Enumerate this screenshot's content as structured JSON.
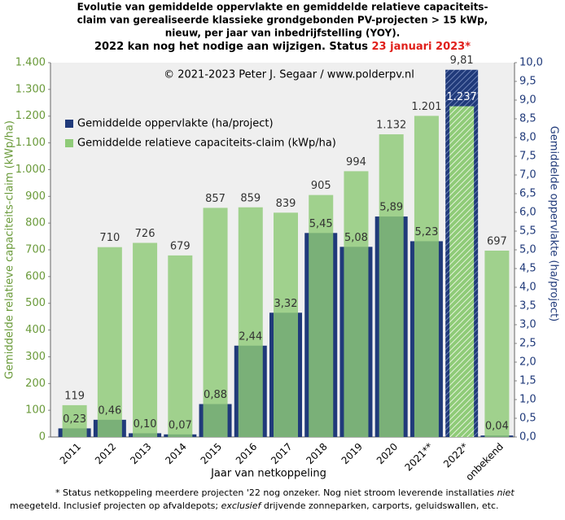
{
  "chart_data": {
    "type": "bar",
    "title_lines": [
      "Evolutie van gemiddelde oppervlakte en gemiddelde relatieve capaciteits-",
      "claim van gerealiseerde klassieke grondgebonden PV-projecten > 15 kWp,",
      "nieuw, per jaar van inbedrijfstelling  (YOY)."
    ],
    "subtitle": "2022 kan nog het nodige aan wijzigen. Status ",
    "subtitle_highlight": "23 januari 2023*",
    "annotation": "© 2021-2023  Peter J. Segaar / www.polderpv.nl",
    "x_label": "Jaar van netkoppeling",
    "y_label": "Gemiddelde  relatieve  capaciteits-claim  (kWp/ha)",
    "y2_label": "Gemiddelde  oppervlakte  (ha/project)",
    "categories": [
      "2011",
      "2012",
      "2013",
      "2014",
      "2015",
      "2016",
      "2017",
      "2018",
      "2019",
      "2020",
      "2021**",
      "2022*",
      "onbekend"
    ],
    "hatched_index": 11,
    "series": [
      {
        "name": "Gemiddelde oppervlakte (ha/project)",
        "color": "#203a7a",
        "axis": "y2",
        "values": [
          0.23,
          0.46,
          0.1,
          0.07,
          0.88,
          2.44,
          3.32,
          5.45,
          5.08,
          5.89,
          5.23,
          9.81,
          0.04
        ],
        "value_labels": [
          "0,23",
          "0,46",
          "0,10",
          "0,07",
          "0,88",
          "2,44",
          "3,32",
          "5,45",
          "5,08",
          "5,89",
          "5,23",
          "9,81",
          "0,04"
        ]
      },
      {
        "name": "Gemiddelde relatieve capaciteits-claim (kWp/ha)",
        "color": "#8fcb78",
        "axis": "y",
        "values": [
          119,
          710,
          726,
          679,
          857,
          859,
          839,
          905,
          994,
          1132,
          1201,
          1237,
          697
        ],
        "value_labels": [
          "119",
          "710",
          "726",
          "679",
          "857",
          "859",
          "839",
          "905",
          "994",
          "1.132",
          "1.201",
          "1.237",
          "697"
        ]
      }
    ],
    "ylim": [
      0,
      1400
    ],
    "yticks": [
      0,
      100,
      200,
      300,
      400,
      500,
      600,
      700,
      800,
      900,
      {
        "value": 1000,
        "label": "1.000"
      },
      {
        "value": 1100,
        "label": "1.100"
      },
      {
        "value": 1200,
        "label": "1.200"
      },
      {
        "value": 1300,
        "label": "1.300"
      },
      {
        "value": 1400,
        "label": "1.400"
      }
    ],
    "y2lim": [
      0,
      10
    ],
    "y2ticks": [
      {
        "value": 0,
        "label": "0,0"
      },
      {
        "value": 0.5,
        "label": "0,5"
      },
      {
        "value": 1,
        "label": "1,0"
      },
      {
        "value": 1.5,
        "label": "1,5"
      },
      {
        "value": 2,
        "label": "2,0"
      },
      {
        "value": 2.5,
        "label": "2,5"
      },
      {
        "value": 3,
        "label": "3,0"
      },
      {
        "value": 3.5,
        "label": "3,5"
      },
      {
        "value": 4,
        "label": "4,0"
      },
      {
        "value": 4.5,
        "label": "4,5"
      },
      {
        "value": 5,
        "label": "5,0"
      },
      {
        "value": 5.5,
        "label": "5,5"
      },
      {
        "value": 6,
        "label": "6,0"
      },
      {
        "value": 6.5,
        "label": "6,5"
      },
      {
        "value": 7,
        "label": "7,0"
      },
      {
        "value": 7.5,
        "label": "7,5"
      },
      {
        "value": 8,
        "label": "8,0"
      },
      {
        "value": 8.5,
        "label": "8,5"
      },
      {
        "value": 9,
        "label": "9,0"
      },
      {
        "value": 9.5,
        "label": "9,5"
      },
      {
        "value": 10,
        "label": "10,0"
      }
    ],
    "legend": "upper left",
    "footnote_lines": [
      [
        {
          "text": "* Status netkoppeling meerdere projecten '22 nog onzeker. Nog niet stroom leverende installaties ",
          "italic": false
        },
        {
          "text": "niet",
          "italic": true
        }
      ],
      [
        {
          "text": "meegeteld. Inclusief projecten op afvaldepots; ",
          "italic": false
        },
        {
          "text": "exclusief",
          "italic": true
        },
        {
          "text": " drijvende zonneparken, carports, geluidswallen, etc.",
          "italic": false
        }
      ]
    ]
  }
}
